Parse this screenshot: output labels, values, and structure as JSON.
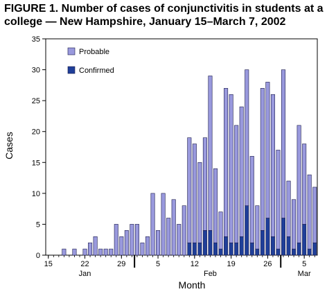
{
  "title": "FIGURE 1. Number of cases of conjunctivitis in students at a college — New Hampshire, January 15–March 7, 2002",
  "chart_data": {
    "type": "bar",
    "stacked": true,
    "xlabel": "Month",
    "ylabel": "Cases",
    "ylim": [
      0,
      35
    ],
    "yticks": [
      0,
      5,
      10,
      15,
      20,
      25,
      30,
      35
    ],
    "x_range": [
      "2002-01-15",
      "2002-03-07"
    ],
    "x_tick_labels": [
      "15",
      "22",
      "29",
      "5",
      "12",
      "19",
      "26",
      "5"
    ],
    "x_tick_dates": [
      "2002-01-15",
      "2002-01-22",
      "2002-01-29",
      "2002-02-05",
      "2002-02-12",
      "2002-02-19",
      "2002-02-26",
      "2002-03-05"
    ],
    "month_labels": [
      "Jan",
      "Feb",
      "Mar"
    ],
    "month_label_dates": [
      "2002-01-22",
      "2002-02-15",
      "2002-03-05"
    ],
    "month_boundaries": [
      "2002-02-01",
      "2002-03-01"
    ],
    "legend": {
      "position": "top-left",
      "entries": [
        "Probable",
        "Confirmed"
      ]
    },
    "colors": {
      "probable": "#9999dd",
      "confirmed": "#1f3f99",
      "edge": "#1a1a4a"
    },
    "dates": [
      "2002-01-18",
      "2002-01-20",
      "2002-01-22",
      "2002-01-23",
      "2002-01-24",
      "2002-01-25",
      "2002-01-26",
      "2002-01-27",
      "2002-01-28",
      "2002-01-29",
      "2002-01-30",
      "2002-01-31",
      "2002-02-01",
      "2002-02-02",
      "2002-02-03",
      "2002-02-04",
      "2002-02-05",
      "2002-02-06",
      "2002-02-07",
      "2002-02-08",
      "2002-02-09",
      "2002-02-10",
      "2002-02-11",
      "2002-02-12",
      "2002-02-13",
      "2002-02-14",
      "2002-02-15",
      "2002-02-16",
      "2002-02-17",
      "2002-02-18",
      "2002-02-19",
      "2002-02-20",
      "2002-02-21",
      "2002-02-22",
      "2002-02-23",
      "2002-02-24",
      "2002-02-25",
      "2002-02-26",
      "2002-02-27",
      "2002-02-28",
      "2002-03-01",
      "2002-03-02",
      "2002-03-03",
      "2002-03-04",
      "2002-03-05",
      "2002-03-06",
      "2002-03-07"
    ],
    "series": [
      {
        "name": "Confirmed",
        "values": [
          0,
          0,
          0,
          0,
          0,
          0,
          0,
          0,
          0,
          0,
          0,
          0,
          0,
          0,
          0,
          0,
          0,
          0,
          0,
          0,
          0,
          0,
          2,
          2,
          2,
          4,
          4,
          2,
          1,
          3,
          2,
          2,
          3,
          8,
          2,
          1,
          4,
          6,
          3,
          1,
          6,
          3,
          1,
          2,
          5,
          1,
          2
        ]
      },
      {
        "name": "Probable",
        "values": [
          1,
          1,
          1,
          2,
          3,
          1,
          1,
          1,
          5,
          3,
          4,
          5,
          5,
          2,
          3,
          10,
          4,
          10,
          6,
          9,
          5,
          8,
          17,
          16,
          13,
          15,
          25,
          12,
          6,
          24,
          24,
          19,
          21,
          22,
          14,
          7,
          23,
          22,
          23,
          16,
          24,
          9,
          8,
          19,
          13,
          12,
          9
        ]
      }
    ]
  }
}
